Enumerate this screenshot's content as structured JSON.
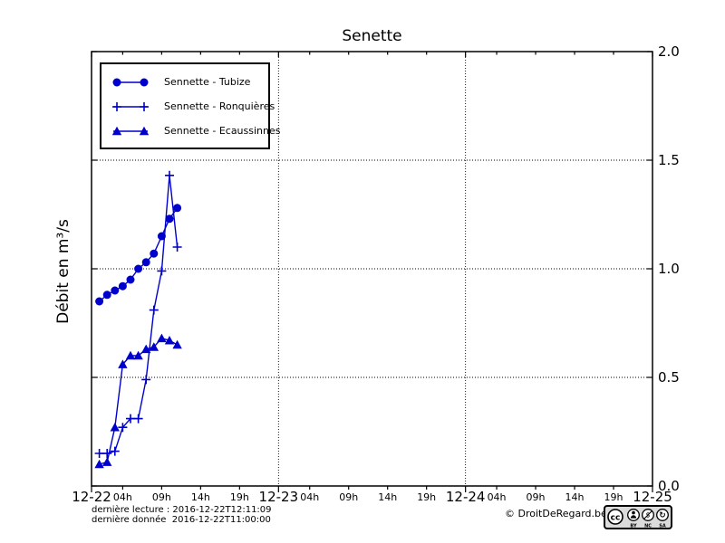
{
  "colors": {
    "series": "#0000cc",
    "text": "#000000",
    "background": "#ffffff",
    "badge_bg": "#dbdbdb"
  },
  "legend": [
    {
      "label": "Sennette - Tubize",
      "marker": "circle"
    },
    {
      "label": "Sennette - Ronquières",
      "marker": "plus"
    },
    {
      "label": "Sennette - Ecaussinnes",
      "marker": "triangle"
    }
  ],
  "footer": {
    "last_reading": "dernière lecture : 2016-12-22T12:11:09",
    "last_data": "dernière donnée  2016-12-22T11:00:00",
    "copyright": "© DroitDeRegard.be",
    "license": {
      "cc": "cc",
      "by": "BY",
      "nc": "NC",
      "sa": "SA",
      "sa_glyph": "↻",
      "nc_glyph": "$"
    }
  },
  "chart_data": {
    "type": "line",
    "title": "Senette",
    "xlabel": "",
    "ylabel": "Débit en m³/s",
    "x_unit": "hours since 2016-12-22T00:00",
    "xlim_hours": [
      0,
      72
    ],
    "ylim": [
      0,
      2.0
    ],
    "grid": "dotted lines at major ticks",
    "legend_position": "upper left",
    "x_major_ticks": [
      {
        "hour": 0,
        "label": "12-22"
      },
      {
        "hour": 24,
        "label": "12-23"
      },
      {
        "hour": 48,
        "label": "12-24"
      },
      {
        "hour": 72,
        "label": "12-25"
      }
    ],
    "x_minor_ticks": [
      {
        "hour": 4,
        "label": "04h"
      },
      {
        "hour": 9,
        "label": "09h"
      },
      {
        "hour": 14,
        "label": "14h"
      },
      {
        "hour": 19,
        "label": "19h"
      },
      {
        "hour": 28,
        "label": "04h"
      },
      {
        "hour": 33,
        "label": "09h"
      },
      {
        "hour": 38,
        "label": "14h"
      },
      {
        "hour": 43,
        "label": "19h"
      },
      {
        "hour": 52,
        "label": "04h"
      },
      {
        "hour": 57,
        "label": "09h"
      },
      {
        "hour": 62,
        "label": "14h"
      },
      {
        "hour": 67,
        "label": "19h"
      }
    ],
    "y_ticks": [
      {
        "value": 0.0,
        "label": "0.0"
      },
      {
        "value": 0.5,
        "label": "0.5"
      },
      {
        "value": 1.0,
        "label": "1.0"
      },
      {
        "value": 1.5,
        "label": "1.5"
      },
      {
        "value": 2.0,
        "label": "2.0"
      }
    ],
    "x_hours": [
      1,
      2,
      3,
      4,
      5,
      6,
      7,
      8,
      9,
      10,
      11
    ],
    "series": [
      {
        "name": "Sennette - Tubize",
        "marker": "circle",
        "values": [
          0.85,
          0.88,
          0.9,
          0.92,
          0.95,
          1.0,
          1.03,
          1.07,
          1.15,
          1.23,
          1.28
        ]
      },
      {
        "name": "Sennette - Ronquières",
        "marker": "plus",
        "values": [
          0.15,
          0.15,
          0.16,
          0.27,
          0.31,
          0.31,
          0.49,
          0.81,
          0.99,
          1.43,
          1.1
        ]
      },
      {
        "name": "Sennette - Ecaussinnes",
        "marker": "triangle",
        "values": [
          0.1,
          0.11,
          0.27,
          0.56,
          0.6,
          0.6,
          0.63,
          0.64,
          0.68,
          0.67,
          0.65
        ]
      }
    ]
  }
}
